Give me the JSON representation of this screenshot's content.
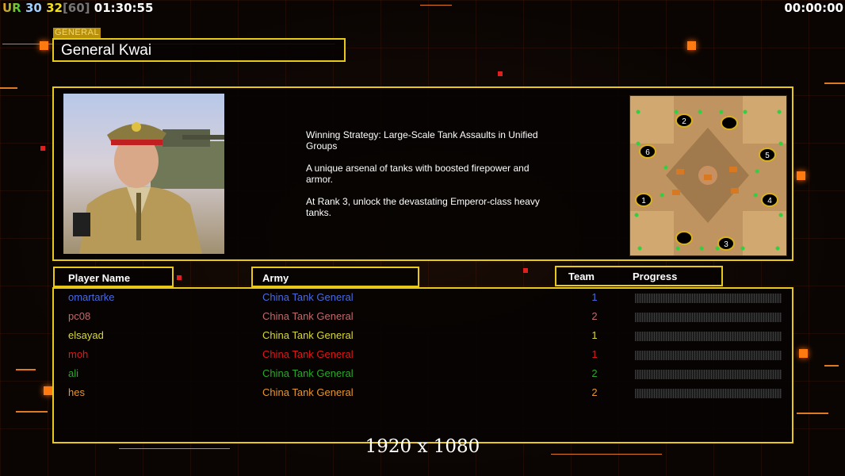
{
  "hud": {
    "ur_label": "UR",
    "value_a": "30",
    "value_b": "32",
    "value_bracket": "[60]",
    "clock": "01:30:55",
    "timer_right": "00:00:00"
  },
  "general": {
    "tag": "GENERAL",
    "name": "General Kwai",
    "description": [
      "Winning Strategy: Large-Scale Tank Assaults in Unified\n Groups",
      "A unique arsenal of tanks with boosted firepower and\n armor.",
      "At Rank 3, unlock the devastating Emperor-class heavy\n tanks."
    ],
    "portrait_icon": "general-portrait",
    "map_icon": "minimap"
  },
  "map": {
    "start_positions": [
      "1",
      "2",
      "3",
      "4",
      "5",
      "6"
    ]
  },
  "table": {
    "headers": {
      "player": "Player Name",
      "army": "Army",
      "team": "Team",
      "progress": "Progress"
    },
    "rows": [
      {
        "name": "omartarke",
        "army": "China Tank General",
        "team": "1",
        "color": "#4a6ae0",
        "progress": 0
      },
      {
        "name": "pc08",
        "army": "China Tank General",
        "team": "2",
        "color": "#c06a6a",
        "progress": 0
      },
      {
        "name": "elsayad",
        "army": "China Tank General",
        "team": "1",
        "color": "#d8d83a",
        "progress": 0
      },
      {
        "name": "moh",
        "army": "China Tank General",
        "team": "1",
        "color": "#e01818",
        "progress": 0
      },
      {
        "name": "ali",
        "army": "China Tank General",
        "team": "2",
        "color": "#2aa82a",
        "progress": 0
      },
      {
        "name": "hes",
        "army": "China Tank General",
        "team": "2",
        "color": "#e8962e",
        "progress": 0
      }
    ]
  },
  "resolution": "1920 x 1080",
  "colors": {
    "accent": "#e8c818",
    "hud_orange": "#ff7a10"
  }
}
